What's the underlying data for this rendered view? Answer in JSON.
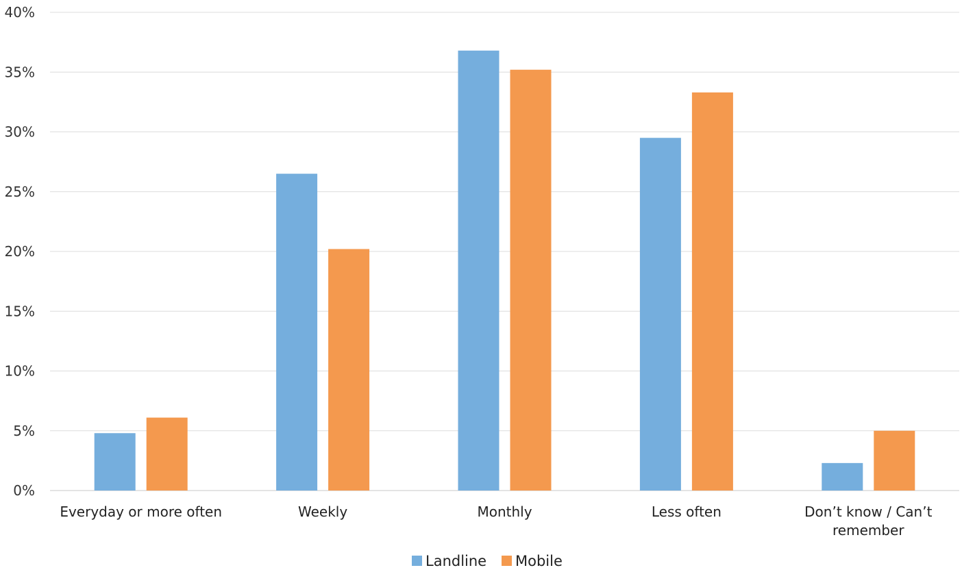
{
  "chart_data": {
    "type": "bar",
    "title": "",
    "xlabel": "",
    "ylabel": "",
    "ylim": [
      0,
      0.4
    ],
    "yticks": [
      0,
      0.05,
      0.1,
      0.15,
      0.2,
      0.25,
      0.3,
      0.35,
      0.4
    ],
    "ytick_labels": [
      "0%",
      "5%",
      "10%",
      "15%",
      "20%",
      "25%",
      "30%",
      "35%",
      "40%"
    ],
    "grid": true,
    "legend_position": "bottom-center",
    "categories": [
      [
        "Everyday or more often"
      ],
      [
        "Weekly"
      ],
      [
        "Monthly"
      ],
      [
        "Less often"
      ],
      [
        "Don’t know / Can’t",
        "remember"
      ]
    ],
    "series": [
      {
        "name": "Landline",
        "color": "#75aedd",
        "values": [
          0.048,
          0.265,
          0.368,
          0.295,
          0.023
        ]
      },
      {
        "name": "Mobile",
        "color": "#f4994e",
        "values": [
          0.061,
          0.202,
          0.352,
          0.333,
          0.05
        ]
      }
    ]
  }
}
